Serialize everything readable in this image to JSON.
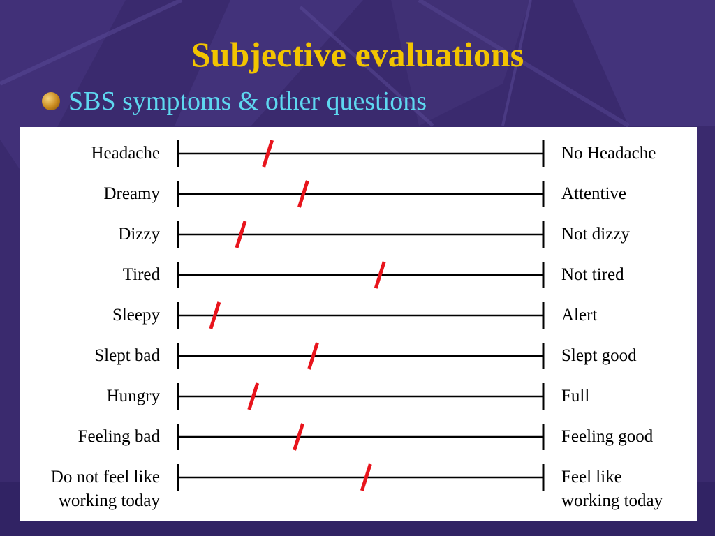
{
  "slide": {
    "title": "Subjective evaluations",
    "bullet": "SBS symptoms & other questions",
    "colors": {
      "background": "#3a2a6e",
      "title": "#f2c400",
      "bullet_text": "#5ed8f0",
      "marker": "#e8141c",
      "scale_line": "#000000"
    }
  },
  "scales": [
    {
      "left": "Headache",
      "right": "No Headache",
      "mark": 0.246
    },
    {
      "left": "Dreamy",
      "right": "Attentive",
      "mark": 0.343
    },
    {
      "left": "Dizzy",
      "right": "Not dizzy",
      "mark": 0.172
    },
    {
      "left": "Tired",
      "right": "Not tired",
      "mark": 0.553
    },
    {
      "left": "Sleepy",
      "right": "Alert",
      "mark": 0.101
    },
    {
      "left": "Slept bad",
      "right": "Slept good",
      "mark": 0.37
    },
    {
      "left": "Hungry",
      "right": "Full",
      "mark": 0.206
    },
    {
      "left": "Feeling bad",
      "right": "Feeling good",
      "mark": 0.33
    },
    {
      "left": "Do not feel like\nworking today",
      "right": "Feel like\nworking today",
      "mark": 0.515
    }
  ]
}
